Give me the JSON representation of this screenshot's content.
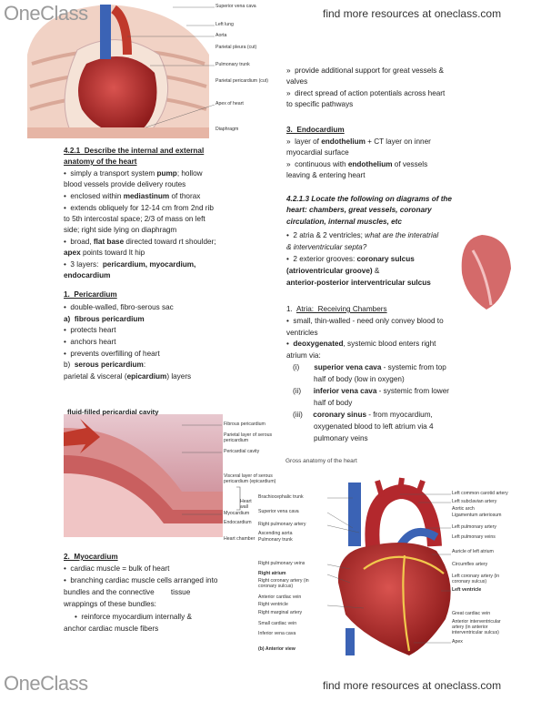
{
  "header": {
    "logo": "OneClass",
    "link": "find more resources at oneclass.com"
  },
  "footer": {
    "logo": "OneClass",
    "link": "find more resources at oneclass.com"
  },
  "figure1": {
    "labels": [
      "Superior vena cava",
      "Left lung",
      "Aorta",
      "Parietal pleura (cut)",
      "Pulmonary trunk",
      "Parietal pericardium (cut)",
      "Apex of heart",
      "Diaphragm"
    ]
  },
  "figure2": {
    "title": "fluid-filled pericardial cavity",
    "labels": [
      "Fibrous pericardium",
      "Parietal layer of serous pericardium",
      "Pericardial cavity",
      "Visceral layer of serous pericardium (epicardium)",
      "Heart wall",
      "Myocardium",
      "Endocardium",
      "Heart chamber"
    ]
  },
  "figure3": {
    "caption": "Gross anatomy of the heart",
    "left_labels": [
      "Brachiocephalic trunk",
      "Superior vena cava",
      "Right pulmonary artery",
      "Ascending aorta",
      "Pulmonary trunk",
      "Right pulmonary veins",
      "Right atrium",
      "Right coronary artery (in coronary sulcus)",
      "Anterior cardiac vein",
      "Right ventricle",
      "Right marginal artery",
      "Small cardiac vein",
      "Inferior vena cava",
      "(b) Anterior view"
    ],
    "right_labels": [
      "Left common carotid artery",
      "Left subclavian artery",
      "Aortic arch",
      "Ligamentum arteriosum",
      "Left pulmonary artery",
      "Left pulmonary veins",
      "Auricle of left atrium",
      "Circumflex artery",
      "Left coronary artery (in coronary sulcus)",
      "Left ventricle",
      "Great cardiac vein",
      "Anterior interventricular artery (in anterior interventricular sulcus)",
      "Apex"
    ]
  },
  "left": {
    "lines": [
      [
        {
          "t": "4.2.1  Describe the internal and external",
          "s": "bu"
        }
      ],
      [
        {
          "t": "anatomy of the heart",
          "s": "bu"
        }
      ],
      [
        "•  simply a transport system ",
        {
          "t": "pump",
          "s": "b"
        },
        "; hollow"
      ],
      [
        "blood vessels provide delivery routes"
      ],
      [
        "•  enclosed within ",
        {
          "t": "mediastinum",
          "s": "b"
        },
        " of thorax"
      ],
      [
        "•  extends obliquely for 12-14 cm from 2nd rib"
      ],
      [
        "to 5th intercostal space; 2/3 of mass on left"
      ],
      [
        "side; right side lying on diaphragm"
      ],
      [
        "•  broad, ",
        {
          "t": "flat base",
          "s": "b"
        },
        " directed toward rt shoulder;"
      ],
      [
        {
          "t": "apex",
          "s": "b"
        },
        " points toward lt hip"
      ],
      [
        "•  3 layers:  ",
        {
          "t": "pericardium, myocardium,",
          "s": "b"
        }
      ],
      [
        {
          "t": "endocardium",
          "s": "b"
        }
      ],
      [
        {
          "t": "1.  Pericardium",
          "s": "bu"
        }
      ],
      [
        "•  double-walled, fibro-serous sac"
      ],
      [
        {
          "t": "a)  fibrous pericardium",
          "s": "b"
        }
      ],
      [
        "•  protects heart"
      ],
      [
        "•  anchors heart"
      ],
      [
        "•  prevents overfilling of heart"
      ],
      [
        "b)  ",
        {
          "t": "serous pericardium",
          "s": "b"
        },
        ":"
      ],
      [
        "parietal & visceral (",
        {
          "t": "epicardium",
          "s": "b"
        },
        ") layers"
      ],
      [
        {
          "t": "2.  Myocardium",
          "s": "bu"
        }
      ],
      [
        "•  cardiac muscle = bulk of heart"
      ],
      [
        "•  branching cardiac muscle cells arranged into"
      ],
      [
        "bundles and the connective        tissue"
      ],
      [
        "wrappings of these bundles:"
      ],
      [
        "•  reinforce myocardium internally &"
      ],
      [
        "anchor cardiac muscle fibers"
      ]
    ]
  },
  "right": {
    "lines": [
      [
        "»  provide additional support for great vessels &"
      ],
      [
        "valves"
      ],
      [
        "»  direct spread of action potentials across heart"
      ],
      [
        "to specific pathways"
      ],
      [
        {
          "t": "3.  Endocardium",
          "s": "bu"
        }
      ],
      [
        "»  layer of ",
        {
          "t": "endothelium",
          "s": "b"
        },
        " + CT layer on inner"
      ],
      [
        "myocardial surface"
      ],
      [
        "»  continuous with ",
        {
          "t": "endothelium",
          "s": "b"
        },
        " of vessels"
      ],
      [
        "leaving & entering heart"
      ],
      [
        {
          "t": "4.2.1.3 Locate the following on diagrams of the",
          "s": "bi"
        }
      ],
      [
        {
          "t": "heart: chambers, great vessels, coronary",
          "s": "bi"
        }
      ],
      [
        {
          "t": "circulation, internal muscles, etc",
          "s": "bi"
        }
      ],
      [
        "•  2 atria & 2 ventricles; ",
        {
          "t": "what are the interatrial",
          "s": "i"
        }
      ],
      [
        {
          "t": "& interventricular septa?",
          "s": "i"
        }
      ],
      [
        "•  2 exterior grooves: ",
        {
          "t": "coronary sulcus",
          "s": "b"
        }
      ],
      [
        {
          "t": "(atrioventricular groove)",
          "s": "b"
        },
        " &"
      ],
      [
        {
          "t": "anterior-posterior interventricular sulcus",
          "s": "b"
        }
      ],
      [
        "1.  ",
        {
          "t": "Atria:  Receiving Chambers",
          "s": "u"
        }
      ],
      [
        "•  small, thin-walled - need only convey blood to"
      ],
      [
        "ventricles"
      ],
      [
        "•  ",
        {
          "t": "deoxygenated",
          "s": "b"
        },
        ", systemic blood enters right"
      ],
      [
        "atrium via:"
      ],
      [
        "(i)       ",
        {
          "t": "superior vena cava",
          "s": "b"
        },
        " - systemic from top"
      ],
      [
        "half of body (low in oxygen)"
      ],
      [
        "(ii)      ",
        {
          "t": "inferior vena cava",
          "s": "b"
        },
        " - systemic from lower"
      ],
      [
        "half of body"
      ],
      [
        "(iii)     ",
        {
          "t": "coronary sinus",
          "s": "b"
        },
        " - from myocardium,"
      ],
      [
        "oxygenated blood to left atrium via 4"
      ],
      [
        "pulmonary veins"
      ]
    ]
  }
}
